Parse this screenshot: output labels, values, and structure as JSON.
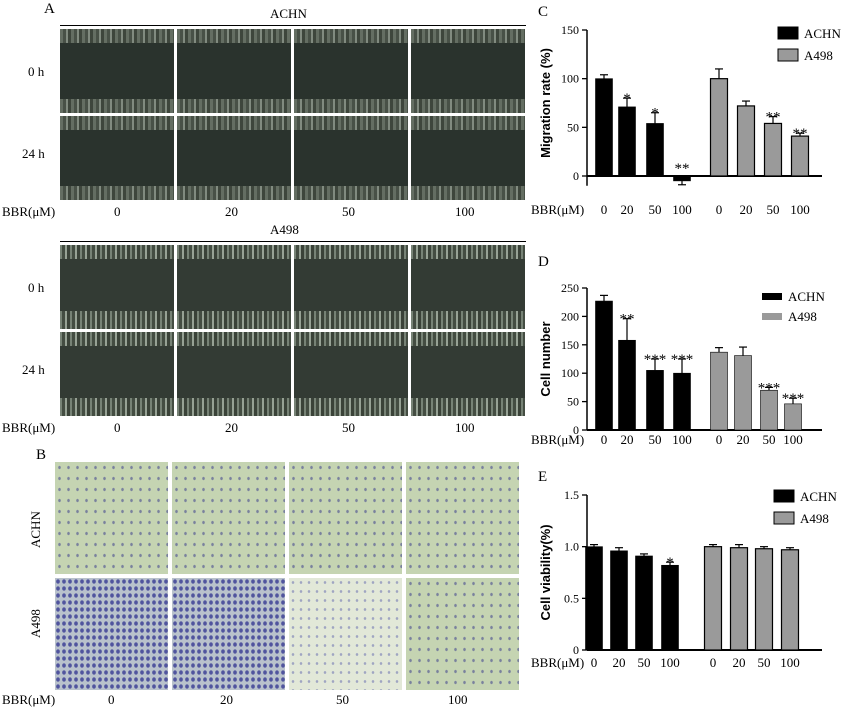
{
  "panel_a": {
    "letter": "A",
    "groups": [
      {
        "title": "ACHN",
        "rows": [
          "0 h",
          "24 h"
        ]
      },
      {
        "title": "A498",
        "rows": [
          "0 h",
          "24 h"
        ]
      }
    ],
    "bbr_label": "BBR(μM)",
    "doses": [
      "0",
      "20",
      "50",
      "100"
    ]
  },
  "panel_b": {
    "letter": "B",
    "rows": [
      "ACHN",
      "A498"
    ],
    "bbr_label": "BBR(μM)",
    "doses": [
      "0",
      "20",
      "50",
      "100"
    ]
  },
  "chart_data": [
    {
      "panel": "C",
      "type": "bar",
      "categories": [
        "0",
        "20",
        "50",
        "100"
      ],
      "ylabel": "Migration rate (%)",
      "xlabel": "BBR(μM)",
      "ylim": [
        -10,
        150
      ],
      "yticks": [
        0,
        50,
        100,
        150
      ],
      "series": [
        {
          "name": "ACHN",
          "color": "#000000",
          "values": [
            100,
            71,
            54,
            -5
          ],
          "errors": [
            4,
            9,
            11,
            4
          ],
          "sig": [
            "",
            "*",
            "*",
            "**"
          ]
        },
        {
          "name": "A498",
          "color": "#9a9a9a",
          "values": [
            100,
            72,
            54,
            41
          ],
          "errors": [
            10,
            5,
            7,
            3
          ],
          "sig": [
            "",
            "",
            "**",
            "**"
          ]
        }
      ],
      "legend": "top-right"
    },
    {
      "panel": "D",
      "type": "bar",
      "categories": [
        "0",
        "20",
        "50",
        "100"
      ],
      "ylabel": "Cell number",
      "xlabel": "BBR(μM)",
      "ylim": [
        0,
        250
      ],
      "yticks": [
        0,
        50,
        100,
        150,
        200,
        250
      ],
      "series": [
        {
          "name": "ACHN",
          "color": "#000000",
          "values": [
            227,
            158,
            105,
            100
          ],
          "errors": [
            10,
            38,
            20,
            25
          ],
          "sig": [
            "",
            "**",
            "***",
            "***"
          ]
        },
        {
          "name": "A498",
          "color": "#9a9a9a",
          "values": [
            137,
            131,
            70,
            46
          ],
          "errors": [
            8,
            15,
            5,
            10
          ],
          "sig": [
            "",
            "",
            "***",
            "***"
          ]
        }
      ],
      "legend": "top-right"
    },
    {
      "panel": "E",
      "type": "bar",
      "categories": [
        "0",
        "20",
        "50",
        "100"
      ],
      "ylabel": "Cell viability(%)",
      "xlabel": "BBR(μM)",
      "ylim": [
        0,
        1.5
      ],
      "yticks": [
        0,
        0.5,
        1.0,
        1.5
      ],
      "ytick_labels": [
        "0",
        "0.5",
        "1.0",
        "1.5"
      ],
      "series": [
        {
          "name": "ACHN",
          "color": "#000000",
          "values": [
            1.0,
            0.96,
            0.91,
            0.82
          ],
          "errors": [
            0.02,
            0.03,
            0.02,
            0.03
          ],
          "sig": [
            "",
            "",
            "",
            "*"
          ]
        },
        {
          "name": "A498",
          "color": "#9a9a9a",
          "values": [
            1.0,
            0.99,
            0.98,
            0.97
          ],
          "errors": [
            0.02,
            0.03,
            0.02,
            0.02
          ],
          "sig": [
            "",
            "",
            "",
            ""
          ]
        }
      ],
      "legend": "top-right"
    }
  ]
}
